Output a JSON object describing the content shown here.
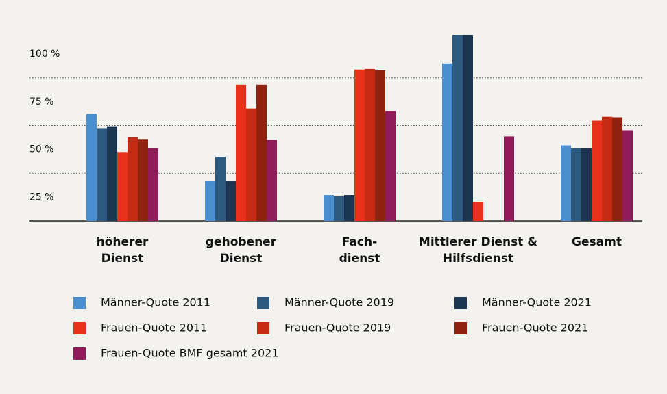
{
  "chart_data": {
    "type": "bar",
    "categories": [
      [
        "höherer",
        "Dienst"
      ],
      [
        "gehobener",
        "Dienst"
      ],
      [
        "Fach-",
        "dienst"
      ],
      [
        "Mittlerer Dienst &",
        "Hilfsdienst"
      ],
      [
        "Gesamt"
      ]
    ],
    "series": [
      {
        "name": "Männer-Quote 2011",
        "color": "#4a8fd0",
        "values": [
          56.1,
          21.1,
          13.6,
          82.5,
          39.6
        ]
      },
      {
        "name": "Männer-Quote 2019",
        "color": "#2e5a80",
        "values": [
          48.6,
          33.6,
          12.9,
          97.5,
          38.2
        ]
      },
      {
        "name": "Männer-Quote 2021",
        "color": "#1c3550",
        "values": [
          49.6,
          21.1,
          13.6,
          97.5,
          38.2
        ]
      },
      {
        "name": "Frauen-Quote 2011",
        "color": "#e8311a",
        "values": [
          36.1,
          71.4,
          79.3,
          10,
          52.5
        ]
      },
      {
        "name": "Frauen-Quote 2019",
        "color": "#c42a14",
        "values": [
          43.9,
          58.9,
          79.6,
          0,
          54.6
        ]
      },
      {
        "name": "Frauen-Quote 2021",
        "color": "#8f2310",
        "values": [
          42.9,
          71.4,
          78.9,
          0,
          54.3
        ]
      },
      {
        "name": "Frauen-Quote BMF gesamt 2021",
        "color": "#921c5a",
        "values": [
          38.2,
          42.5,
          57.5,
          44.3,
          47.5
        ]
      }
    ],
    "ylim": [
      0,
      100
    ],
    "yticks": [
      {
        "value": 25,
        "label": "25 %"
      },
      {
        "value": 50,
        "label": "50 %"
      },
      {
        "value": 75,
        "label": "75 %"
      },
      {
        "value": 100,
        "label": "100 %"
      }
    ],
    "grid": true
  }
}
